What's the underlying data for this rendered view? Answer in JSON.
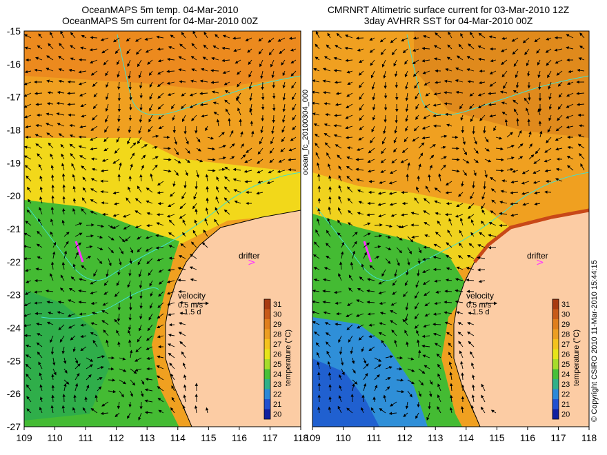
{
  "left_panel": {
    "title_line1": "OceanMAPS 5m temp. 04-Mar-2010",
    "title_line2": "OceanMAPS 5m current for 04-Mar-2010 00Z",
    "drifter_label": "drifter",
    "velocity_label": "velocity",
    "speed_label": "0.5 m/s",
    "days_label": "1.5 d"
  },
  "right_panel": {
    "title_line1": "CMRNRT Altimetric surface current for 03-Mar-2010 12Z",
    "title_line2": "3day AVHRR SST for 04-Mar-2010 00Z",
    "drifter_label": "drifter",
    "velocity_label": "velocity",
    "speed_label": "0.5 m/s",
    "days_label": "1.5 d"
  },
  "colorbar": {
    "title": "temperature (°C)",
    "ticks": [
      "31",
      "30",
      "29",
      "28",
      "27",
      "26",
      "25",
      "24",
      "23",
      "22",
      "21",
      "20"
    ],
    "colors": [
      "#a83a10",
      "#c85a18",
      "#e07e1c",
      "#ec9e22",
      "#f4c21e",
      "#e6e41a",
      "#a6dc2a",
      "#48c038",
      "#30b088",
      "#2a88d8",
      "#2050d0",
      "#1020a0"
    ]
  },
  "side_text_left": "ocean_fc_20100304_000",
  "side_text_right": "© Copyright CSIRO 2010   11-Mar-2010 15:44:15",
  "axes": {
    "x_ticks": [
      "109",
      "110",
      "111",
      "112",
      "113",
      "114",
      "115",
      "116",
      "117",
      "118"
    ],
    "y_ticks": [
      "-15",
      "-16",
      "-17",
      "-18",
      "-19",
      "-20",
      "-21",
      "-22",
      "-23",
      "-24",
      "-25",
      "-26",
      "-27"
    ]
  },
  "map_colors": {
    "land": "#fccca4",
    "coast_line": "#000000",
    "bathymetry": "#40e0d0",
    "drifter": "#ff33ff",
    "warm_orange": "#f0a020",
    "yellow": "#f2d81a",
    "green": "#44bb33",
    "blue": "#2f8fd8"
  }
}
